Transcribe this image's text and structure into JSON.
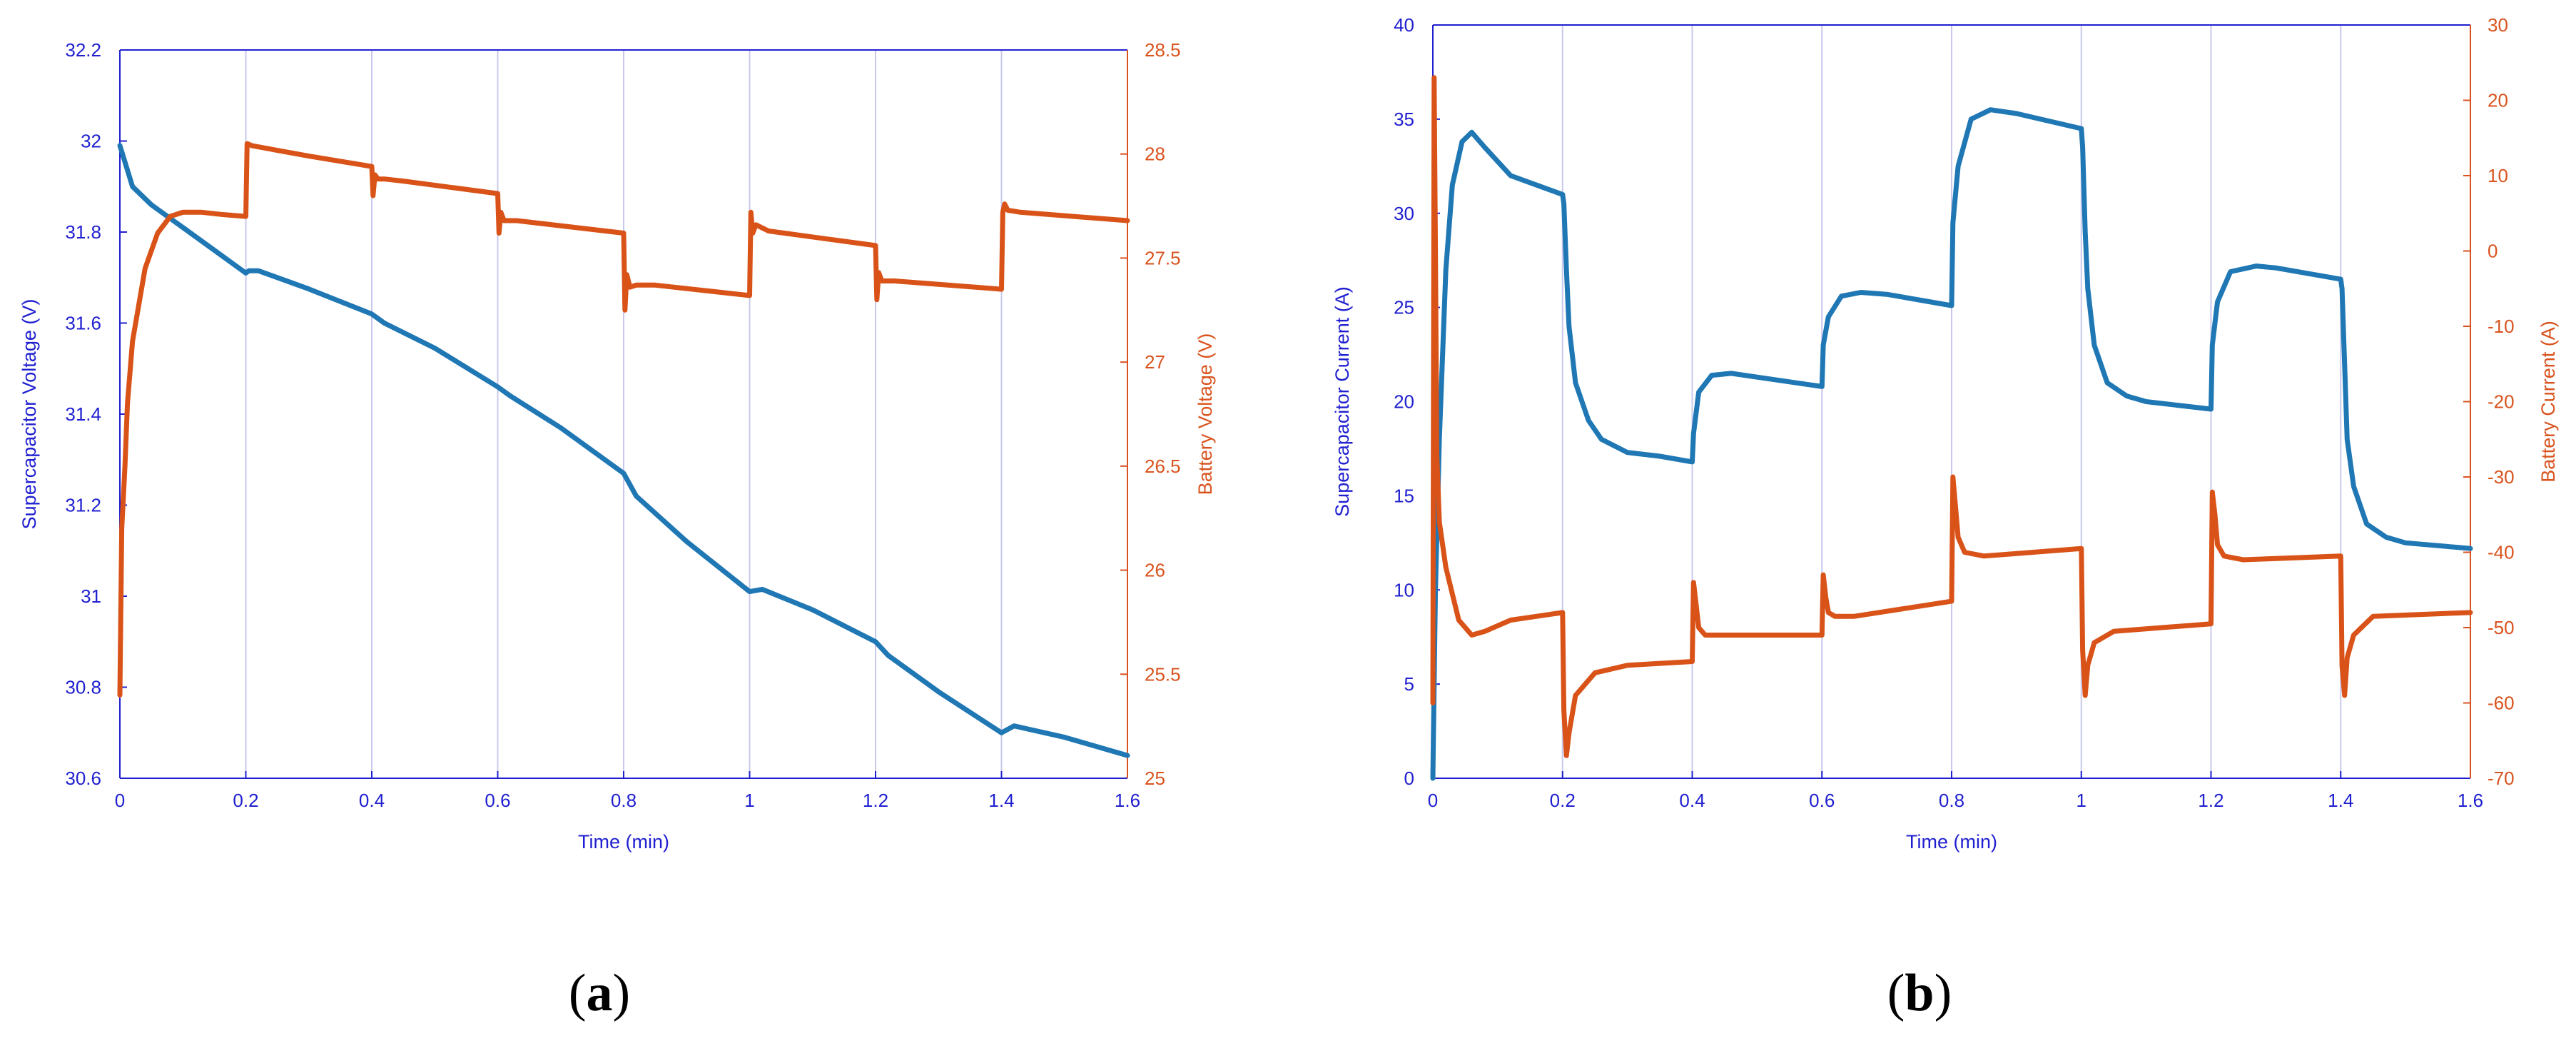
{
  "colors": {
    "left_axis": "#2020d0",
    "right_axis": "#d9531e",
    "blue_series": "#1f77b4",
    "orange_series": "#d95319",
    "grid": "#c8c8ee",
    "axes_box": "#2020d0"
  },
  "panels": [
    {
      "label_open": "(",
      "label_letter": "a",
      "label_close": ")"
    },
    {
      "label_open": "(",
      "label_letter": "b",
      "label_close": ")"
    }
  ],
  "chart_data": [
    {
      "type": "line",
      "xlabel": "Time (min)",
      "ylabel": "Supercapacitor Voltage (V)",
      "ylabel_right": "Battery Voltage (V)",
      "xlim": [
        0,
        1.6
      ],
      "ylim": [
        30.6,
        32.2
      ],
      "ylim_right": [
        25,
        28.5
      ],
      "xticks": [
        "0",
        "0.2",
        "0.4",
        "0.6",
        "0.8",
        "1",
        "1.2",
        "1.4",
        "1.6"
      ],
      "yticks": [
        "30.6",
        "30.8",
        "31",
        "31.2",
        "31.4",
        "31.6",
        "31.8",
        "32",
        "32.2"
      ],
      "yticks_right": [
        "25",
        "25.5",
        "26",
        "26.5",
        "27",
        "27.5",
        "28",
        "28.5"
      ],
      "grid": "vertical",
      "series": [
        {
          "axis": "left",
          "color": "#1f77b4",
          "x": [
            0,
            0.02,
            0.05,
            0.1,
            0.15,
            0.2,
            0.205,
            0.22,
            0.3,
            0.4,
            0.42,
            0.5,
            0.6,
            0.62,
            0.7,
            0.8,
            0.82,
            0.9,
            1.0,
            1.02,
            1.1,
            1.2,
            1.22,
            1.3,
            1.4,
            1.42,
            1.5,
            1.6
          ],
          "y": [
            31.99,
            31.9,
            31.86,
            31.81,
            31.76,
            31.71,
            31.715,
            31.715,
            31.675,
            31.62,
            31.6,
            31.545,
            31.46,
            31.44,
            31.37,
            31.27,
            31.22,
            31.12,
            31.01,
            31.015,
            30.97,
            30.9,
            30.87,
            30.79,
            30.7,
            30.715,
            30.69,
            30.65
          ]
        },
        {
          "axis": "right",
          "color": "#d95319",
          "x": [
            0,
            0.003,
            0.008,
            0.012,
            0.02,
            0.04,
            0.06,
            0.08,
            0.1,
            0.13,
            0.16,
            0.2,
            0.202,
            0.21,
            0.3,
            0.4,
            0.402,
            0.405,
            0.41,
            0.42,
            0.45,
            0.6,
            0.602,
            0.605,
            0.61,
            0.63,
            0.8,
            0.802,
            0.805,
            0.81,
            0.82,
            0.85,
            1.0,
            1.002,
            1.005,
            1.01,
            1.03,
            1.2,
            1.202,
            1.205,
            1.21,
            1.23,
            1.4,
            1.402,
            1.405,
            1.41,
            1.43,
            1.6
          ],
          "y": [
            25.4,
            26.2,
            26.5,
            26.8,
            27.1,
            27.45,
            27.62,
            27.7,
            27.72,
            27.72,
            27.71,
            27.7,
            28.05,
            28.04,
            27.99,
            27.94,
            27.8,
            27.9,
            27.88,
            27.88,
            27.87,
            27.81,
            27.62,
            27.72,
            27.68,
            27.68,
            27.62,
            27.25,
            27.42,
            27.36,
            27.37,
            27.37,
            27.32,
            27.72,
            27.62,
            27.66,
            27.63,
            27.56,
            27.3,
            27.43,
            27.39,
            27.39,
            27.35,
            27.72,
            27.76,
            27.73,
            27.72,
            27.68
          ]
        }
      ]
    },
    {
      "type": "line",
      "xlabel": "Time (min)",
      "ylabel": "Supercapacitor Current (A)",
      "ylabel_right": "Battery Current (A)",
      "xlim": [
        0,
        1.6
      ],
      "ylim": [
        0,
        40
      ],
      "ylim_right": [
        -70,
        30
      ],
      "xticks": [
        "0",
        "0.2",
        "0.4",
        "0.6",
        "0.8",
        "1",
        "1.2",
        "1.4",
        "1.6"
      ],
      "yticks": [
        "0",
        "5",
        "10",
        "15",
        "20",
        "25",
        "30",
        "35",
        "40"
      ],
      "yticks_right": [
        "-70",
        "-60",
        "-50",
        "-40",
        "-30",
        "-20",
        "-10",
        "0",
        "10",
        "20",
        "30"
      ],
      "grid": "vertical",
      "series": [
        {
          "axis": "left",
          "color": "#1f77b4",
          "x": [
            0,
            0.004,
            0.01,
            0.02,
            0.03,
            0.045,
            0.06,
            0.08,
            0.12,
            0.16,
            0.2,
            0.202,
            0.206,
            0.21,
            0.22,
            0.24,
            0.26,
            0.3,
            0.35,
            0.4,
            0.402,
            0.41,
            0.43,
            0.46,
            0.5,
            0.6,
            0.602,
            0.61,
            0.63,
            0.66,
            0.7,
            0.8,
            0.802,
            0.81,
            0.83,
            0.86,
            0.9,
            1.0,
            1.002,
            1.006,
            1.01,
            1.02,
            1.04,
            1.07,
            1.1,
            1.2,
            1.202,
            1.21,
            1.23,
            1.27,
            1.3,
            1.4,
            1.402,
            1.406,
            1.41,
            1.42,
            1.44,
            1.47,
            1.5,
            1.6
          ],
          "y": [
            0,
            10,
            18,
            27,
            31.5,
            33.8,
            34.3,
            33.5,
            32,
            31.5,
            31,
            30.5,
            27,
            24,
            21,
            19,
            18,
            17.3,
            17.1,
            16.8,
            18.3,
            20.5,
            21.4,
            21.5,
            21.3,
            20.8,
            23,
            24.5,
            25.6,
            25.8,
            25.7,
            25.1,
            29.5,
            32.5,
            35,
            35.5,
            35.3,
            34.5,
            33.5,
            29,
            26,
            23,
            21,
            20.3,
            20,
            19.6,
            23,
            25.3,
            26.9,
            27.2,
            27.1,
            26.5,
            26,
            22,
            18,
            15.5,
            13.5,
            12.8,
            12.5,
            12.2
          ]
        },
        {
          "axis": "right",
          "color": "#d95319",
          "x": [
            0,
            0.002,
            0.004,
            0.006,
            0.01,
            0.02,
            0.04,
            0.06,
            0.08,
            0.12,
            0.2,
            0.202,
            0.206,
            0.21,
            0.22,
            0.25,
            0.3,
            0.4,
            0.402,
            0.406,
            0.41,
            0.42,
            0.45,
            0.6,
            0.602,
            0.606,
            0.61,
            0.62,
            0.65,
            0.8,
            0.802,
            0.806,
            0.81,
            0.82,
            0.85,
            1.0,
            1.002,
            1.006,
            1.01,
            1.02,
            1.05,
            1.2,
            1.202,
            1.206,
            1.21,
            1.22,
            1.25,
            1.4,
            1.402,
            1.406,
            1.41,
            1.42,
            1.45,
            1.6
          ],
          "y": [
            -60,
            23,
            0,
            -27,
            -36,
            -42,
            -49,
            -51,
            -50.5,
            -49,
            -48,
            -61,
            -67,
            -64,
            -59,
            -56,
            -55,
            -54.5,
            -44,
            -47,
            -50,
            -51,
            -51,
            -51,
            -43,
            -46,
            -48,
            -48.5,
            -48.5,
            -46.5,
            -30,
            -34,
            -38,
            -40,
            -40.5,
            -39.5,
            -53,
            -59,
            -55,
            -52,
            -50.5,
            -49.5,
            -32,
            -35,
            -39,
            -40.5,
            -41,
            -40.5,
            -55,
            -59,
            -54,
            -51,
            -48.5,
            -48
          ]
        }
      ]
    }
  ]
}
